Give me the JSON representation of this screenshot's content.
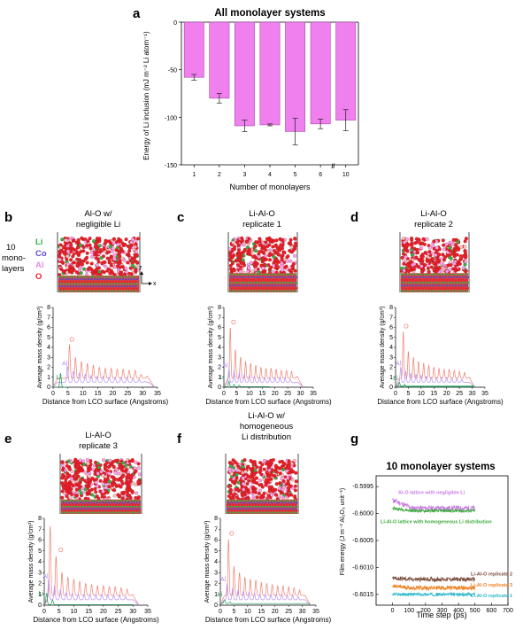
{
  "panels": {
    "a": {
      "letter": "a"
    },
    "b": {
      "letter": "b",
      "caption": [
        "Al-O w/",
        "negligible Li"
      ]
    },
    "c": {
      "letter": "c",
      "caption": [
        "Li-Al-O",
        "replicate 1"
      ]
    },
    "d": {
      "letter": "d",
      "caption": [
        "Li-Al-O",
        "replicate 2"
      ]
    },
    "e": {
      "letter": "e",
      "caption": [
        "Li-Al-O",
        "replicate 3"
      ]
    },
    "f": {
      "letter": "f",
      "caption": [
        "Li-Al-O w/",
        "homogeneous",
        "Li distribution"
      ]
    },
    "g": {
      "letter": "g"
    }
  },
  "legend_b": {
    "system_label": [
      "10",
      "mono-",
      "layers"
    ],
    "elements": [
      {
        "name": "Li",
        "color": "#2db34a"
      },
      {
        "name": "Co",
        "color": "#5b4bd6"
      },
      {
        "name": "Al",
        "color": "#e58ae8"
      },
      {
        "name": "O",
        "color": "#e8202a"
      }
    ],
    "axis_z": "z",
    "axis_x": "x"
  },
  "density_axes": {
    "ylabel": "Average mass density (g/cm³)",
    "xlabel": "Distance from LCO surface (Angstroms)"
  },
  "colors": {
    "bar": "#ef80ee",
    "O": "#f08070",
    "Al": "#b88ef0",
    "Li": "#1e9e5a"
  },
  "chart_data": [
    {
      "id": "a",
      "type": "bar",
      "title": "All monolayer systems",
      "xlabel": "Number of monolayers",
      "ylabel": "Energy of Li inclusion (mJ m⁻² Li atom⁻¹)",
      "categories": [
        "1",
        "2",
        "3",
        "4",
        "5",
        "6",
        "10"
      ],
      "values": [
        -58,
        -80,
        -109,
        -108,
        -115,
        -107,
        -103
      ],
      "errors": [
        3,
        5,
        6,
        1,
        14,
        5,
        11
      ],
      "ylim": [
        -150,
        0
      ],
      "yticks": [
        "0",
        "-50",
        "-100",
        "-150"
      ],
      "axis_break": "//"
    },
    {
      "id": "b",
      "type": "line",
      "xlim": [
        0,
        35
      ],
      "ylim": [
        0,
        8
      ],
      "xticks": [
        "0",
        "5",
        "10",
        "15",
        "20",
        "25",
        "30",
        "35"
      ],
      "yticks": [
        "0",
        "1",
        "2",
        "3",
        "4",
        "5",
        "6",
        "7",
        "8"
      ],
      "series": [
        {
          "name": "O",
          "peaks": [
            [
              5.5,
              4.3
            ],
            [
              7.5,
              3.0
            ],
            [
              9.5,
              2.6
            ],
            [
              11.5,
              2.4
            ],
            [
              13.5,
              2.2
            ],
            [
              15.5,
              2.0
            ],
            [
              17.5,
              1.9
            ],
            [
              19.5,
              1.9
            ],
            [
              21.5,
              1.8
            ],
            [
              23.5,
              1.8
            ],
            [
              25.5,
              1.7
            ],
            [
              27.5,
              1.7
            ],
            [
              29.5,
              1.3
            ],
            [
              31.5,
              1.1
            ]
          ],
          "base": 0.9,
          "end": 34
        },
        {
          "name": "Al",
          "peaks": [
            [
              4.8,
              2.1
            ],
            [
              6.8,
              1.6
            ],
            [
              8.8,
              1.4
            ],
            [
              10.8,
              1.3
            ],
            [
              12.8,
              1.2
            ],
            [
              14.8,
              1.1
            ],
            [
              16.8,
              1.1
            ],
            [
              18.8,
              1.0
            ],
            [
              20.8,
              1.0
            ],
            [
              22.8,
              1.0
            ],
            [
              24.8,
              1.0
            ],
            [
              26.8,
              0.9
            ],
            [
              28.8,
              0.8
            ],
            [
              30.8,
              0.6
            ]
          ],
          "base": 0.5,
          "end": 34
        },
        {
          "name": "Li",
          "peaks": [
            [
              2.5,
              1.4
            ]
          ],
          "base": 0.02,
          "end": 5
        }
      ],
      "label_pos": {
        "O": [
          5.5,
          4.6
        ],
        "Al": [
          3.0,
          2.2
        ],
        "Li": [
          1.0,
          0.8
        ]
      }
    },
    {
      "id": "c",
      "type": "line",
      "xlim": [
        0,
        35
      ],
      "ylim": [
        0,
        8
      ],
      "xticks": [
        "0",
        "5",
        "10",
        "15",
        "20",
        "25",
        "30",
        "35"
      ],
      "yticks": [
        "0",
        "1",
        "2",
        "3",
        "4",
        "5",
        "6",
        "7",
        "8"
      ],
      "series": [
        {
          "name": "O",
          "peaks": [
            [
              2.5,
              6.0
            ],
            [
              4.5,
              3.8
            ],
            [
              6.5,
              3.0
            ],
            [
              8.5,
              2.6
            ],
            [
              10.5,
              2.4
            ],
            [
              12.5,
              2.2
            ],
            [
              14.5,
              2.0
            ],
            [
              16.5,
              1.9
            ],
            [
              18.5,
              1.9
            ],
            [
              20.5,
              1.8
            ],
            [
              22.5,
              1.7
            ],
            [
              24.5,
              1.7
            ],
            [
              26.5,
              1.6
            ],
            [
              28.5,
              1.1
            ]
          ],
          "base": 0.9,
          "end": 31
        },
        {
          "name": "Al",
          "peaks": [
            [
              2.0,
              1.8
            ],
            [
              4.0,
              1.6
            ],
            [
              6.0,
              1.4
            ],
            [
              8.0,
              1.3
            ],
            [
              10.0,
              1.2
            ],
            [
              12.0,
              1.1
            ],
            [
              14.0,
              1.0
            ],
            [
              16.0,
              1.0
            ],
            [
              18.0,
              1.0
            ],
            [
              20.0,
              1.0
            ],
            [
              22.0,
              1.0
            ],
            [
              24.0,
              0.9
            ],
            [
              26.0,
              0.8
            ],
            [
              28.0,
              0.5
            ]
          ],
          "base": 0.5,
          "end": 31
        },
        {
          "name": "Li",
          "peaks": [
            [
              2.0,
              0.6
            ],
            [
              4.0,
              0.3
            ],
            [
              6.0,
              0.2
            ]
          ],
          "base": 0.05,
          "end": 18
        }
      ],
      "label_pos": {
        "O": [
          2.8,
          6.3
        ],
        "Al": [
          -0.5,
          2.0
        ],
        "Li": [
          -1.5,
          0.8
        ]
      }
    },
    {
      "id": "d",
      "type": "line",
      "xlim": [
        0,
        35
      ],
      "ylim": [
        0,
        8
      ],
      "xticks": [
        "0",
        "5",
        "10",
        "15",
        "20",
        "25",
        "30",
        "35"
      ],
      "yticks": [
        "0",
        "1",
        "2",
        "3",
        "4",
        "5",
        "6",
        "7",
        "8"
      ],
      "series": [
        {
          "name": "O",
          "peaks": [
            [
              3.0,
              5.6
            ],
            [
              5.0,
              3.6
            ],
            [
              7.0,
              3.0
            ],
            [
              9.0,
              2.6
            ],
            [
              11.0,
              2.4
            ],
            [
              13.0,
              2.2
            ],
            [
              15.0,
              2.0
            ],
            [
              17.0,
              1.9
            ],
            [
              19.0,
              1.8
            ],
            [
              21.0,
              1.8
            ],
            [
              23.0,
              1.7
            ],
            [
              25.0,
              1.6
            ],
            [
              27.0,
              1.5
            ],
            [
              29.0,
              1.0
            ]
          ],
          "base": 0.9,
          "end": 31
        },
        {
          "name": "Al",
          "peaks": [
            [
              2.0,
              2.0
            ],
            [
              4.0,
              1.6
            ],
            [
              6.0,
              1.4
            ],
            [
              8.0,
              1.3
            ],
            [
              10.0,
              1.2
            ],
            [
              12.0,
              1.1
            ],
            [
              14.0,
              1.0
            ],
            [
              16.0,
              1.0
            ],
            [
              18.0,
              1.0
            ],
            [
              20.0,
              1.0
            ],
            [
              22.0,
              0.9
            ],
            [
              24.0,
              0.9
            ],
            [
              26.0,
              0.8
            ],
            [
              28.0,
              0.5
            ]
          ],
          "base": 0.5,
          "end": 31
        },
        {
          "name": "Li",
          "peaks": [
            [
              1.5,
              0.5
            ],
            [
              3.5,
              0.3
            ]
          ],
          "base": 0.05,
          "end": 31
        },
        {
          "name": "Li2",
          "peaks": [],
          "base": 0.15,
          "end": 31
        }
      ],
      "label_pos": {
        "O": [
          3.2,
          5.9
        ],
        "Al": [
          0.0,
          2.2
        ],
        "Li": [
          -1.0,
          0.7
        ]
      }
    },
    {
      "id": "e",
      "type": "line",
      "xlim": [
        0,
        35
      ],
      "ylim": [
        0,
        8
      ],
      "xticks": [
        "0",
        "5",
        "10",
        "15",
        "20",
        "25",
        "30",
        "35"
      ],
      "yticks": [
        "0",
        "1",
        "2",
        "3",
        "4",
        "5",
        "6",
        "7",
        "8"
      ],
      "series": [
        {
          "name": "O",
          "peaks": [
            [
              2.0,
              7.3
            ],
            [
              4.0,
              4.5
            ],
            [
              6.0,
              3.0
            ],
            [
              8.0,
              2.6
            ],
            [
              10.0,
              2.4
            ],
            [
              12.0,
              2.2
            ],
            [
              14.0,
              2.0
            ],
            [
              16.0,
              1.9
            ],
            [
              18.0,
              1.8
            ],
            [
              20.0,
              1.8
            ],
            [
              22.0,
              1.7
            ],
            [
              24.0,
              1.7
            ],
            [
              26.0,
              1.6
            ],
            [
              28.0,
              1.5
            ],
            [
              30.0,
              1.0
            ]
          ],
          "base": 0.9,
          "end": 32
        },
        {
          "name": "Al",
          "peaks": [
            [
              1.5,
              2.4
            ],
            [
              3.5,
              1.8
            ],
            [
              5.5,
              1.4
            ],
            [
              7.5,
              1.2
            ],
            [
              9.5,
              1.1
            ],
            [
              11.5,
              1.0
            ],
            [
              13.5,
              1.0
            ],
            [
              15.5,
              1.0
            ],
            [
              17.5,
              1.0
            ],
            [
              19.5,
              1.0
            ],
            [
              21.5,
              1.0
            ],
            [
              23.5,
              0.9
            ],
            [
              25.5,
              0.9
            ],
            [
              27.5,
              0.8
            ],
            [
              29.5,
              0.5
            ]
          ],
          "base": 0.5,
          "end": 32
        },
        {
          "name": "Li",
          "peaks": [
            [
              0.8,
              1.1
            ],
            [
              2.8,
              0.5
            ]
          ],
          "base": 0.05,
          "end": 30
        }
      ],
      "label_pos": {
        "O": [
          4.8,
          4.9
        ],
        "Al": [
          -0.5,
          2.5
        ],
        "Li": [
          -2.0,
          0.9
        ]
      }
    },
    {
      "id": "f",
      "type": "line",
      "xlim": [
        0,
        35
      ],
      "ylim": [
        0,
        8
      ],
      "xticks": [
        "0",
        "5",
        "10",
        "15",
        "20",
        "25",
        "30",
        "35"
      ],
      "yticks": [
        "0",
        "1",
        "2",
        "3",
        "4",
        "5",
        "6",
        "7",
        "8"
      ],
      "series": [
        {
          "name": "O",
          "peaks": [
            [
              3.0,
              6.1
            ],
            [
              5.0,
              3.6
            ],
            [
              7.0,
              3.0
            ],
            [
              9.0,
              2.6
            ],
            [
              11.0,
              2.4
            ],
            [
              13.0,
              2.3
            ],
            [
              15.0,
              2.1
            ],
            [
              17.0,
              2.0
            ],
            [
              19.0,
              1.9
            ],
            [
              21.0,
              1.8
            ],
            [
              23.0,
              1.8
            ],
            [
              25.0,
              1.7
            ],
            [
              27.0,
              1.6
            ],
            [
              29.0,
              1.4
            ],
            [
              31.0,
              0.9
            ]
          ],
          "base": 0.9,
          "end": 33
        },
        {
          "name": "Al",
          "peaks": [
            [
              2.5,
              2.0
            ],
            [
              4.5,
              1.6
            ],
            [
              6.5,
              1.4
            ],
            [
              8.5,
              1.3
            ],
            [
              10.5,
              1.2
            ],
            [
              12.5,
              1.1
            ],
            [
              14.5,
              1.0
            ],
            [
              16.5,
              1.0
            ],
            [
              18.5,
              1.0
            ],
            [
              20.5,
              1.0
            ],
            [
              22.5,
              1.0
            ],
            [
              24.5,
              0.9
            ],
            [
              26.5,
              0.9
            ],
            [
              28.5,
              0.8
            ],
            [
              30.5,
              0.5
            ]
          ],
          "base": 0.5,
          "end": 33
        },
        {
          "name": "Li",
          "peaks": [
            [
              1.5,
              0.5
            ],
            [
              3.5,
              0.3
            ]
          ],
          "base": 0.15,
          "end": 33
        }
      ],
      "label_pos": {
        "O": [
          3.3,
          6.4
        ],
        "Al": [
          0.0,
          2.2
        ],
        "Li": [
          -1.0,
          0.8
        ]
      }
    },
    {
      "id": "g",
      "type": "line",
      "title": "10 monolayer systems",
      "xlabel": "Time step (ps)",
      "ylabel": "Film energy (J m⁻² Al₂O₃ unit⁻¹)",
      "xlim": [
        -100,
        700
      ],
      "ylim": [
        -0.6017,
        -0.5993
      ],
      "xticks": [
        "0",
        "100",
        "200",
        "300",
        "400",
        "500",
        "600",
        "700"
      ],
      "yticks": [
        "-0.5995",
        "-0.6000",
        "-0.6005",
        "-0.6010",
        "-0.6015"
      ],
      "series": [
        {
          "name": "Al-O lattice with negligible Li",
          "color": "#c77ce0",
          "start": -0.59975,
          "mean": -0.5999,
          "noise": 5e-05
        },
        {
          "name": "Li-Al-O lattice with homogeneous Li distribution",
          "color": "#3da83d",
          "start": -0.5999,
          "mean": -0.59995,
          "noise": 3e-05
        },
        {
          "name": "Li-Al-O replicate 2",
          "color": "#7a4a3a",
          "start": -0.6012,
          "mean": -0.60122,
          "noise": 4e-05
        },
        {
          "name": "Li-Al-O replicate 3",
          "color": "#f08020",
          "start": -0.60135,
          "mean": -0.60138,
          "noise": 4e-05
        },
        {
          "name": "Li-Al-O replicate 1",
          "color": "#29b6c9",
          "start": -0.6015,
          "mean": -0.6015,
          "noise": 3e-05
        }
      ]
    }
  ]
}
